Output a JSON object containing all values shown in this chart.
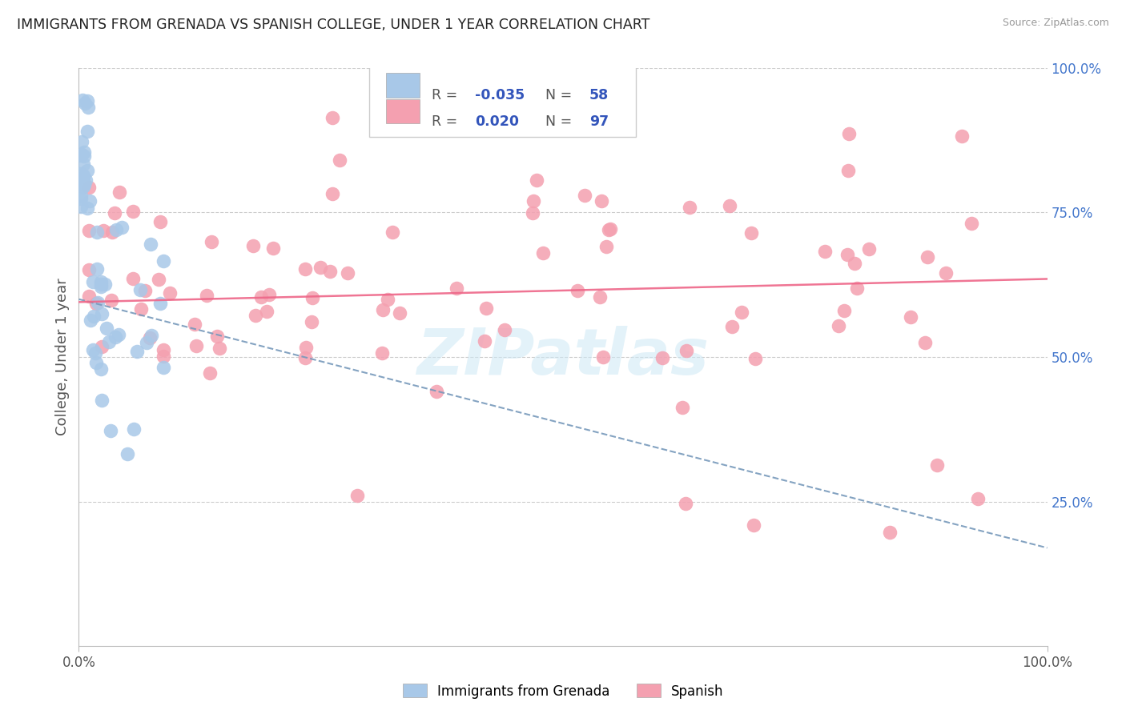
{
  "title": "IMMIGRANTS FROM GRENADA VS SPANISH COLLEGE, UNDER 1 YEAR CORRELATION CHART",
  "source": "Source: ZipAtlas.com",
  "ylabel": "College, Under 1 year",
  "legend_R_blue": "-0.035",
  "legend_N_blue": "58",
  "legend_R_pink": "0.020",
  "legend_N_pink": "97",
  "blue_color": "#a8c8e8",
  "pink_color": "#f4a0b0",
  "blue_line_color": "#7799bb",
  "pink_line_color": "#ee6688",
  "background_color": "#ffffff",
  "grid_color": "#cccccc",
  "watermark": "ZIPatlas",
  "blue_seed": 42,
  "pink_seed": 99,
  "legend_text_color": "#3355bb",
  "label_color": "#555555",
  "right_tick_color": "#4477cc"
}
